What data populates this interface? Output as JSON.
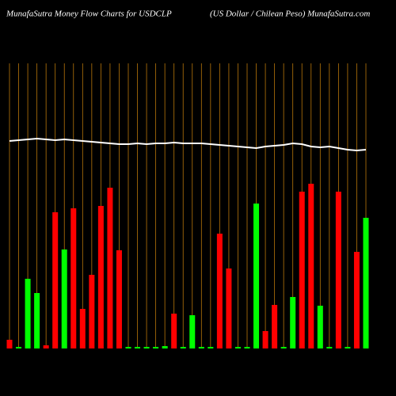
{
  "chart_data": {
    "type": "bar",
    "title": "MunafaSutra  Money Flow  Charts for USDCLP",
    "subtitle": "(US Dollar / Chilean  Peso) MunafaSutra.com",
    "categories": [
      null,
      null,
      null,
      null,
      null,
      null,
      null,
      null,
      null,
      null,
      null,
      null,
      null,
      null,
      null,
      null,
      null,
      null,
      null,
      null,
      null,
      null,
      null,
      null,
      null,
      null,
      null,
      null,
      null,
      null,
      null,
      null,
      null,
      null,
      null,
      null,
      null,
      null,
      null,
      null
    ],
    "series": [
      {
        "type": "bar",
        "values": [
          11,
          2,
          88,
          70,
          4,
          172,
          125,
          177,
          50,
          93,
          180,
          203,
          124,
          2,
          2,
          2,
          2,
          3,
          44,
          2,
          42,
          2,
          2,
          145,
          101,
          2,
          2,
          183,
          22,
          55,
          2,
          65,
          198,
          208,
          54,
          2,
          198,
          2,
          122,
          165
        ],
        "colors": [
          "#ff0000",
          "#00ff00",
          "#00ff00",
          "#00ff00",
          "#ff0000",
          "#ff0000",
          "#00ff00",
          "#ff0000",
          "#ff0000",
          "#ff0000",
          "#ff0000",
          "#ff0000",
          "#ff0000",
          "#00ff00",
          "#00ff00",
          "#00ff00",
          "#00ff00",
          "#00ff00",
          "#ff0000",
          "#00ff00",
          "#00ff00",
          "#00ff00",
          "#00ff00",
          "#ff0000",
          "#ff0000",
          "#00ff00",
          "#00ff00",
          "#00ff00",
          "#ff0000",
          "#ff0000",
          "#00ff00",
          "#00ff00",
          "#ff0000",
          "#ff0000",
          "#00ff00",
          "#00ff00",
          "#ff0000",
          "#00ff00",
          "#ff0000",
          "#00ff00"
        ]
      },
      {
        "type": "line",
        "color": "#ffffff",
        "values": [
          262,
          263,
          264,
          265,
          264,
          263,
          264,
          263,
          262,
          261,
          260,
          259,
          258,
          258,
          259,
          258,
          259,
          259,
          260,
          259,
          259,
          259,
          258,
          257,
          256,
          255,
          254,
          253,
          255,
          256,
          257,
          259,
          258,
          255,
          254,
          255,
          253,
          251,
          250,
          251
        ]
      }
    ],
    "ylim": [
      0,
      360
    ],
    "grid_color": "#b8760a",
    "background": "#000000"
  }
}
